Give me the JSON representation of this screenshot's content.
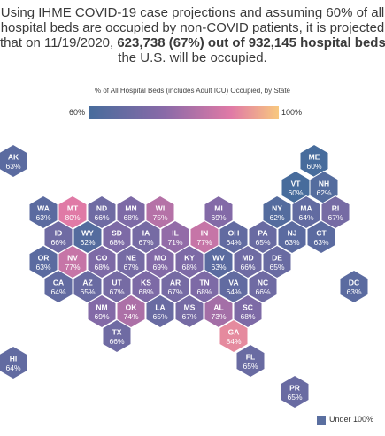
{
  "headline": {
    "line1": "Using IHME COVID-19 case projections and assuming 60% of all",
    "line2": "hospital beds are occupied by non-COVID patients, it is projected",
    "line3_pre": "that on 11/19/2020, ",
    "line3_bold": "623,738 (67%) out of 932,145 hospital beds",
    "line3_post": " in",
    "line4": "the U.S. will be occupied."
  },
  "legend": {
    "title": "% of All Hospital Beds (includes Adult ICU) Occupied, by State",
    "min_label": "60%",
    "max_label": "100%",
    "under_label": "Under 100%",
    "colors": {
      "low": "#476c9c",
      "mid": "#8a6aa8",
      "high": "#e07aa6",
      "max": "#f8c87f"
    }
  },
  "states": [
    {
      "abbr": "AK",
      "pct": "63%",
      "value": 63
    },
    {
      "abbr": "ME",
      "pct": "60%",
      "value": 60
    },
    {
      "abbr": "VT",
      "pct": "60%",
      "value": 60
    },
    {
      "abbr": "NH",
      "pct": "62%",
      "value": 62
    },
    {
      "abbr": "WA",
      "pct": "63%",
      "value": 63
    },
    {
      "abbr": "MT",
      "pct": "80%",
      "value": 80
    },
    {
      "abbr": "ND",
      "pct": "66%",
      "value": 66
    },
    {
      "abbr": "MN",
      "pct": "68%",
      "value": 68
    },
    {
      "abbr": "WI",
      "pct": "75%",
      "value": 75
    },
    {
      "abbr": "MI",
      "pct": "69%",
      "value": 69
    },
    {
      "abbr": "NY",
      "pct": "62%",
      "value": 62
    },
    {
      "abbr": "MA",
      "pct": "64%",
      "value": 64
    },
    {
      "abbr": "RI",
      "pct": "67%",
      "value": 67
    },
    {
      "abbr": "ID",
      "pct": "66%",
      "value": 66
    },
    {
      "abbr": "WY",
      "pct": "62%",
      "value": 62
    },
    {
      "abbr": "SD",
      "pct": "68%",
      "value": 68
    },
    {
      "abbr": "IA",
      "pct": "67%",
      "value": 67
    },
    {
      "abbr": "IL",
      "pct": "71%",
      "value": 71
    },
    {
      "abbr": "IN",
      "pct": "77%",
      "value": 77
    },
    {
      "abbr": "OH",
      "pct": "64%",
      "value": 64
    },
    {
      "abbr": "PA",
      "pct": "65%",
      "value": 65
    },
    {
      "abbr": "NJ",
      "pct": "63%",
      "value": 63
    },
    {
      "abbr": "CT",
      "pct": "63%",
      "value": 63
    },
    {
      "abbr": "OR",
      "pct": "63%",
      "value": 63
    },
    {
      "abbr": "NV",
      "pct": "77%",
      "value": 77
    },
    {
      "abbr": "CO",
      "pct": "68%",
      "value": 68
    },
    {
      "abbr": "NE",
      "pct": "67%",
      "value": 67
    },
    {
      "abbr": "MO",
      "pct": "69%",
      "value": 69
    },
    {
      "abbr": "KY",
      "pct": "68%",
      "value": 68
    },
    {
      "abbr": "WV",
      "pct": "63%",
      "value": 63
    },
    {
      "abbr": "MD",
      "pct": "66%",
      "value": 66
    },
    {
      "abbr": "DE",
      "pct": "65%",
      "value": 65
    },
    {
      "abbr": "CA",
      "pct": "64%",
      "value": 64
    },
    {
      "abbr": "AZ",
      "pct": "65%",
      "value": 65
    },
    {
      "abbr": "UT",
      "pct": "67%",
      "value": 67
    },
    {
      "abbr": "KS",
      "pct": "68%",
      "value": 68
    },
    {
      "abbr": "AR",
      "pct": "67%",
      "value": 67
    },
    {
      "abbr": "TN",
      "pct": "68%",
      "value": 68
    },
    {
      "abbr": "VA",
      "pct": "64%",
      "value": 64
    },
    {
      "abbr": "NC",
      "pct": "66%",
      "value": 66
    },
    {
      "abbr": "DC",
      "pct": "63%",
      "value": 63
    },
    {
      "abbr": "NM",
      "pct": "69%",
      "value": 69
    },
    {
      "abbr": "OK",
      "pct": "74%",
      "value": 74
    },
    {
      "abbr": "LA",
      "pct": "65%",
      "value": 65
    },
    {
      "abbr": "MS",
      "pct": "67%",
      "value": 67
    },
    {
      "abbr": "AL",
      "pct": "73%",
      "value": 73
    },
    {
      "abbr": "SC",
      "pct": "68%",
      "value": 68
    },
    {
      "abbr": "TX",
      "pct": "66%",
      "value": 66
    },
    {
      "abbr": "GA",
      "pct": "84%",
      "value": 84
    },
    {
      "abbr": "HI",
      "pct": "64%",
      "value": 64
    },
    {
      "abbr": "FL",
      "pct": "65%",
      "value": 65
    },
    {
      "abbr": "PR",
      "pct": "65%",
      "value": 65
    }
  ]
}
